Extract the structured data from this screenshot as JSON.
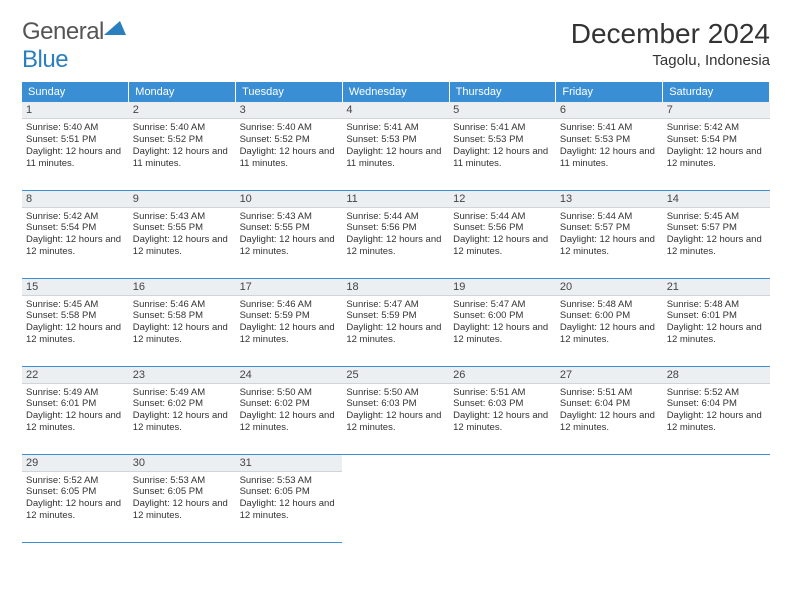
{
  "brand": {
    "text_general": "General",
    "text_blue": "Blue",
    "shape_color": "#2a7fbf"
  },
  "title": {
    "month": "December 2024",
    "location": "Tagolu, Indonesia"
  },
  "colors": {
    "header_bg": "#3a8fd4",
    "header_text": "#ffffff",
    "daynum_bg": "#eceff1",
    "border": "#3a8fd4",
    "text": "#333333"
  },
  "typography": {
    "month_fontsize": 28,
    "location_fontsize": 15,
    "weekday_fontsize": 11,
    "daynum_fontsize": 11,
    "info_fontsize": 9.5
  },
  "weekdays": [
    "Sunday",
    "Monday",
    "Tuesday",
    "Wednesday",
    "Thursday",
    "Friday",
    "Saturday"
  ],
  "weeks": [
    [
      {
        "n": "1",
        "sr": "5:40 AM",
        "ss": "5:51 PM",
        "dl": "12 hours and 11 minutes."
      },
      {
        "n": "2",
        "sr": "5:40 AM",
        "ss": "5:52 PM",
        "dl": "12 hours and 11 minutes."
      },
      {
        "n": "3",
        "sr": "5:40 AM",
        "ss": "5:52 PM",
        "dl": "12 hours and 11 minutes."
      },
      {
        "n": "4",
        "sr": "5:41 AM",
        "ss": "5:53 PM",
        "dl": "12 hours and 11 minutes."
      },
      {
        "n": "5",
        "sr": "5:41 AM",
        "ss": "5:53 PM",
        "dl": "12 hours and 11 minutes."
      },
      {
        "n": "6",
        "sr": "5:41 AM",
        "ss": "5:53 PM",
        "dl": "12 hours and 11 minutes."
      },
      {
        "n": "7",
        "sr": "5:42 AM",
        "ss": "5:54 PM",
        "dl": "12 hours and 12 minutes."
      }
    ],
    [
      {
        "n": "8",
        "sr": "5:42 AM",
        "ss": "5:54 PM",
        "dl": "12 hours and 12 minutes."
      },
      {
        "n": "9",
        "sr": "5:43 AM",
        "ss": "5:55 PM",
        "dl": "12 hours and 12 minutes."
      },
      {
        "n": "10",
        "sr": "5:43 AM",
        "ss": "5:55 PM",
        "dl": "12 hours and 12 minutes."
      },
      {
        "n": "11",
        "sr": "5:44 AM",
        "ss": "5:56 PM",
        "dl": "12 hours and 12 minutes."
      },
      {
        "n": "12",
        "sr": "5:44 AM",
        "ss": "5:56 PM",
        "dl": "12 hours and 12 minutes."
      },
      {
        "n": "13",
        "sr": "5:44 AM",
        "ss": "5:57 PM",
        "dl": "12 hours and 12 minutes."
      },
      {
        "n": "14",
        "sr": "5:45 AM",
        "ss": "5:57 PM",
        "dl": "12 hours and 12 minutes."
      }
    ],
    [
      {
        "n": "15",
        "sr": "5:45 AM",
        "ss": "5:58 PM",
        "dl": "12 hours and 12 minutes."
      },
      {
        "n": "16",
        "sr": "5:46 AM",
        "ss": "5:58 PM",
        "dl": "12 hours and 12 minutes."
      },
      {
        "n": "17",
        "sr": "5:46 AM",
        "ss": "5:59 PM",
        "dl": "12 hours and 12 minutes."
      },
      {
        "n": "18",
        "sr": "5:47 AM",
        "ss": "5:59 PM",
        "dl": "12 hours and 12 minutes."
      },
      {
        "n": "19",
        "sr": "5:47 AM",
        "ss": "6:00 PM",
        "dl": "12 hours and 12 minutes."
      },
      {
        "n": "20",
        "sr": "5:48 AM",
        "ss": "6:00 PM",
        "dl": "12 hours and 12 minutes."
      },
      {
        "n": "21",
        "sr": "5:48 AM",
        "ss": "6:01 PM",
        "dl": "12 hours and 12 minutes."
      }
    ],
    [
      {
        "n": "22",
        "sr": "5:49 AM",
        "ss": "6:01 PM",
        "dl": "12 hours and 12 minutes."
      },
      {
        "n": "23",
        "sr": "5:49 AM",
        "ss": "6:02 PM",
        "dl": "12 hours and 12 minutes."
      },
      {
        "n": "24",
        "sr": "5:50 AM",
        "ss": "6:02 PM",
        "dl": "12 hours and 12 minutes."
      },
      {
        "n": "25",
        "sr": "5:50 AM",
        "ss": "6:03 PM",
        "dl": "12 hours and 12 minutes."
      },
      {
        "n": "26",
        "sr": "5:51 AM",
        "ss": "6:03 PM",
        "dl": "12 hours and 12 minutes."
      },
      {
        "n": "27",
        "sr": "5:51 AM",
        "ss": "6:04 PM",
        "dl": "12 hours and 12 minutes."
      },
      {
        "n": "28",
        "sr": "5:52 AM",
        "ss": "6:04 PM",
        "dl": "12 hours and 12 minutes."
      }
    ],
    [
      {
        "n": "29",
        "sr": "5:52 AM",
        "ss": "6:05 PM",
        "dl": "12 hours and 12 minutes."
      },
      {
        "n": "30",
        "sr": "5:53 AM",
        "ss": "6:05 PM",
        "dl": "12 hours and 12 minutes."
      },
      {
        "n": "31",
        "sr": "5:53 AM",
        "ss": "6:05 PM",
        "dl": "12 hours and 12 minutes."
      },
      null,
      null,
      null,
      null
    ]
  ],
  "labels": {
    "sunrise": "Sunrise:",
    "sunset": "Sunset:",
    "daylight": "Daylight:"
  }
}
